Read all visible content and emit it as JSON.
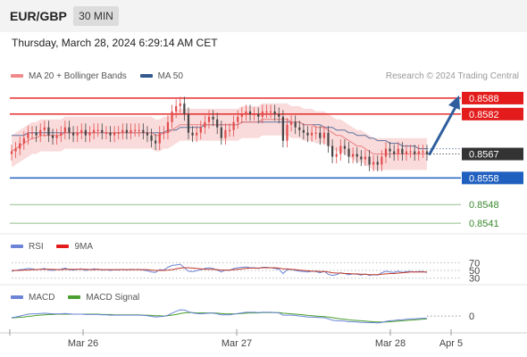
{
  "header": {
    "symbol": "EUR/GBP",
    "interval": "30 MIN",
    "datetime": "Thursday, March 28, 2024 6:29:14 AM CET"
  },
  "legend": {
    "ma20": "MA 20 + Bollinger Bands",
    "ma50": "MA 50",
    "credit": "Research © 2024 Trading Central",
    "rsi": "RSI",
    "rsi_ma": "9MA",
    "macd": "MACD",
    "macd_signal": "MACD Signal"
  },
  "colors": {
    "resistance": "#e31b1b",
    "support": "#1f5fbf",
    "target": "#3a8a2e",
    "current": "#333333",
    "candle_up": "#e34b4b",
    "candle_down": "#444444",
    "bollinger": "#f7c7c7",
    "ma20": "#e88080",
    "ma50": "#34598f",
    "rsi": "#6b84d6",
    "macd": "#6b84d6",
    "macd_signal": "#4aa02c",
    "arrow": "#2f5e9e"
  },
  "chart_data": [
    {
      "type": "candlestick",
      "title": "EUR/GBP",
      "x_ticks": [
        "Mar 26",
        "Mar 27",
        "Mar 28",
        "Apr 5"
      ],
      "ylim": [
        0.8537,
        0.8592
      ],
      "current_price": 0.8567,
      "levels": [
        {
          "value": 0.8588,
          "label": "0.8588",
          "kind": "resistance"
        },
        {
          "value": 0.8582,
          "label": "0.8582",
          "kind": "resistance"
        },
        {
          "value": 0.8567,
          "label": "0.8567",
          "kind": "current"
        },
        {
          "value": 0.8558,
          "label": "0.8558",
          "kind": "support"
        },
        {
          "value": 0.8548,
          "label": "0.8548",
          "kind": "target"
        },
        {
          "value": 0.8541,
          "label": "0.8541",
          "kind": "target"
        }
      ],
      "forecast_arrow": {
        "from": 0.8567,
        "to": 0.8588
      },
      "close": [
        0.8568,
        0.8569,
        0.8571,
        0.8573,
        0.8575,
        0.8575,
        0.8574,
        0.8576,
        0.8577,
        0.8574,
        0.8573,
        0.8574,
        0.8575,
        0.8577,
        0.8575,
        0.8574,
        0.8575,
        0.8576,
        0.8574,
        0.8575,
        0.8576,
        0.8576,
        0.8575,
        0.8575,
        0.8574,
        0.8575,
        0.8575,
        0.8576,
        0.8575,
        0.8576,
        0.8576,
        0.8576,
        0.8575,
        0.8574,
        0.8572,
        0.8571,
        0.8575,
        0.8575,
        0.8579,
        0.8583,
        0.8585,
        0.8586,
        0.8582,
        0.8575,
        0.8574,
        0.8575,
        0.8577,
        0.8579,
        0.8581,
        0.858,
        0.8577,
        0.8573,
        0.8576,
        0.8576,
        0.8579,
        0.8581,
        0.8582,
        0.8583,
        0.8582,
        0.8582,
        0.8581,
        0.8583,
        0.8583,
        0.8583,
        0.8582,
        0.8581,
        0.8572,
        0.8578,
        0.8579,
        0.8577,
        0.8576,
        0.8575,
        0.8574,
        0.8575,
        0.8575,
        0.8573,
        0.8575,
        0.857,
        0.8566,
        0.8567,
        0.857,
        0.8569,
        0.8566,
        0.8567,
        0.8566,
        0.8565,
        0.8566,
        0.8563,
        0.8564,
        0.8563,
        0.8566,
        0.8569,
        0.8568,
        0.8567,
        0.8569,
        0.8567,
        0.8568,
        0.8568,
        0.8567,
        0.8568,
        0.8568,
        0.8567
      ],
      "ma20": [
        0.8568,
        0.8569,
        0.857,
        0.8571,
        0.8572,
        0.8573,
        0.8573,
        0.8574,
        0.8574,
        0.8574,
        0.8574,
        0.8574,
        0.8574,
        0.8575,
        0.8575,
        0.8575,
        0.8575,
        0.8575,
        0.8575,
        0.8575,
        0.8575,
        0.8575,
        0.8575,
        0.8575,
        0.8575,
        0.8575,
        0.8575,
        0.8575,
        0.8575,
        0.8575,
        0.8575,
        0.8575,
        0.8575,
        0.8575,
        0.8575,
        0.8574,
        0.8574,
        0.8575,
        0.8575,
        0.8576,
        0.8577,
        0.8578,
        0.8578,
        0.8578,
        0.8578,
        0.8578,
        0.8578,
        0.8578,
        0.8578,
        0.8578,
        0.8578,
        0.8578,
        0.8578,
        0.8578,
        0.8578,
        0.8578,
        0.8579,
        0.8579,
        0.8579,
        0.8579,
        0.8579,
        0.858,
        0.858,
        0.858,
        0.858,
        0.858,
        0.858,
        0.858,
        0.8579,
        0.8579,
        0.8579,
        0.8578,
        0.8578,
        0.8578,
        0.8577,
        0.8577,
        0.8577,
        0.8576,
        0.8575,
        0.8574,
        0.8574,
        0.8573,
        0.8572,
        0.8571,
        0.857,
        0.857,
        0.8569,
        0.8568,
        0.8567,
        0.8567,
        0.8567,
        0.8567,
        0.8567,
        0.8567,
        0.8567,
        0.8567,
        0.8567,
        0.8567,
        0.8567,
        0.8567,
        0.8567,
        0.8567
      ],
      "ma50": [
        0.8574,
        0.8574,
        0.8574,
        0.8574,
        0.8575,
        0.8575,
        0.8575,
        0.8575,
        0.8575,
        0.8575,
        0.8575,
        0.8575,
        0.8575,
        0.8575,
        0.8575,
        0.8575,
        0.8575,
        0.8575,
        0.8575,
        0.8575,
        0.8575,
        0.8575,
        0.8575,
        0.8575,
        0.8575,
        0.8575,
        0.8575,
        0.8575,
        0.8575,
        0.8575,
        0.8575,
        0.8575,
        0.8575,
        0.8575,
        0.8575,
        0.8575,
        0.8575,
        0.8575,
        0.8576,
        0.8576,
        0.8576,
        0.8577,
        0.8577,
        0.8577,
        0.8577,
        0.8577,
        0.8577,
        0.8578,
        0.8578,
        0.8578,
        0.8578,
        0.8578,
        0.8578,
        0.8578,
        0.8578,
        0.8578,
        0.8579,
        0.8579,
        0.8579,
        0.8579,
        0.8579,
        0.8579,
        0.8579,
        0.8579,
        0.8579,
        0.8579,
        0.8579,
        0.8579,
        0.8579,
        0.8579,
        0.8579,
        0.8578,
        0.8578,
        0.8578,
        0.8578,
        0.8578,
        0.8577,
        0.8577,
        0.8577,
        0.8576,
        0.8576,
        0.8576,
        0.8575,
        0.8575,
        0.8574,
        0.8574,
        0.8574,
        0.8573,
        0.8573,
        0.8572,
        0.8572,
        0.8572,
        0.8571,
        0.8571,
        0.8571,
        0.857,
        0.857,
        0.857,
        0.857,
        0.8569,
        0.8569,
        0.8569
      ],
      "bollinger_width": 0.0006
    },
    {
      "type": "line",
      "title": "RSI",
      "yticks": [
        70,
        50,
        30
      ],
      "ylim": [
        20,
        80
      ],
      "series": [
        {
          "name": "RSI",
          "values": [
            48,
            50,
            52,
            53,
            55,
            54,
            52,
            53,
            55,
            51,
            50,
            52,
            53,
            56,
            52,
            51,
            53,
            54,
            50,
            52,
            54,
            53,
            51,
            52,
            50,
            52,
            51,
            53,
            51,
            53,
            52,
            53,
            51,
            49,
            46,
            45,
            52,
            51,
            58,
            63,
            64,
            66,
            57,
            48,
            47,
            49,
            52,
            55,
            57,
            55,
            51,
            46,
            51,
            50,
            55,
            57,
            58,
            59,
            57,
            57,
            55,
            58,
            58,
            57,
            55,
            53,
            42,
            52,
            53,
            50,
            48,
            47,
            46,
            48,
            47,
            44,
            48,
            40,
            37,
            39,
            44,
            42,
            39,
            41,
            40,
            38,
            41,
            37,
            39,
            38,
            44,
            48,
            46,
            45,
            48,
            45,
            47,
            47,
            46,
            47,
            47,
            45
          ]
        },
        {
          "name": "9MA",
          "values": [
            50,
            50,
            50,
            51,
            51,
            52,
            52,
            53,
            53,
            53,
            53,
            52,
            52,
            53,
            53,
            53,
            53,
            53,
            53,
            52,
            52,
            53,
            52,
            52,
            52,
            52,
            52,
            52,
            52,
            52,
            52,
            52,
            52,
            52,
            51,
            50,
            50,
            50,
            51,
            52,
            54,
            56,
            57,
            57,
            56,
            55,
            54,
            53,
            53,
            53,
            52,
            51,
            51,
            51,
            52,
            53,
            54,
            55,
            56,
            56,
            56,
            57,
            57,
            57,
            57,
            56,
            54,
            54,
            53,
            52,
            51,
            50,
            49,
            48,
            48,
            47,
            47,
            46,
            44,
            43,
            43,
            42,
            42,
            41,
            41,
            40,
            40,
            39,
            39,
            39,
            40,
            41,
            42,
            42,
            43,
            44,
            45,
            46,
            46,
            46,
            46,
            46
          ]
        }
      ]
    },
    {
      "type": "line",
      "title": "MACD",
      "yticks": [
        0
      ],
      "ylim": [
        -0.00045,
        0.0004
      ],
      "series": [
        {
          "name": "MACD",
          "values": [
            -5e-05,
            -3e-05,
            0.0,
            3e-05,
            6e-05,
            7e-05,
            7e-05,
            8e-05,
            9e-05,
            8e-05,
            7e-05,
            7e-05,
            7e-05,
            8e-05,
            7e-05,
            6e-05,
            6e-05,
            6e-05,
            5e-05,
            5e-05,
            5e-05,
            5e-05,
            4e-05,
            4e-05,
            3e-05,
            3e-05,
            3e-05,
            3e-05,
            3e-05,
            3e-05,
            3e-05,
            3e-05,
            2e-05,
            1e-05,
            -1e-05,
            -3e-05,
            -2e-05,
            -1e-05,
            3e-05,
            9e-05,
            0.00015,
            0.0002,
            0.00019,
            0.00014,
            0.0001,
            8e-05,
            7e-05,
            8e-05,
            9e-05,
            9e-05,
            7e-05,
            4e-05,
            4e-05,
            4e-05,
            6e-05,
            8e-05,
            0.0001,
            0.00012,
            0.00012,
            0.00012,
            0.00011,
            0.00012,
            0.00012,
            0.00012,
            0.00011,
            0.0001,
            3e-05,
            3e-05,
            3e-05,
            2e-05,
            0.0,
            -1e-05,
            -3e-05,
            -3e-05,
            -4e-05,
            -5e-05,
            -5e-05,
            -9e-05,
            -0.00013,
            -0.00015,
            -0.00015,
            -0.00016,
            -0.00018,
            -0.00018,
            -0.00019,
            -0.0002,
            -0.0002,
            -0.00021,
            -0.00021,
            -0.00022,
            -0.0002,
            -0.00017,
            -0.00015,
            -0.00014,
            -0.00012,
            -0.00012,
            -0.0001,
            -9e-05,
            -9e-05,
            -8e-05,
            -7e-05,
            -7e-05
          ]
        },
        {
          "name": "MACD Signal",
          "values": [
            -6e-05,
            -5e-05,
            -4e-05,
            -3e-05,
            -1e-05,
            0.0,
            2e-05,
            3e-05,
            4e-05,
            5e-05,
            5e-05,
            6e-05,
            6e-05,
            6e-05,
            6e-05,
            6e-05,
            6e-05,
            6e-05,
            6e-05,
            6e-05,
            6e-05,
            6e-05,
            5e-05,
            5e-05,
            5e-05,
            4e-05,
            4e-05,
            4e-05,
            4e-05,
            4e-05,
            4e-05,
            4e-05,
            3e-05,
            3e-05,
            2e-05,
            1e-05,
            1e-05,
            0.0,
            1e-05,
            3e-05,
            5e-05,
            8e-05,
            0.0001,
            0.00011,
            0.00011,
            0.0001,
            0.0001,
            0.0001,
            0.0001,
            0.0001,
            9e-05,
            8e-05,
            7e-05,
            7e-05,
            7e-05,
            7e-05,
            8e-05,
            9e-05,
            0.0001,
            0.0001,
            0.0001,
            0.00011,
            0.00011,
            0.00011,
            0.00011,
            0.00011,
            9e-05,
            8e-05,
            7e-05,
            6e-05,
            5e-05,
            4e-05,
            2e-05,
            1e-05,
            0.0,
            -1e-05,
            -2e-05,
            -3e-05,
            -5e-05,
            -7e-05,
            -9e-05,
            -0.0001,
            -0.00012,
            -0.00013,
            -0.00014,
            -0.00015,
            -0.00016,
            -0.00017,
            -0.00018,
            -0.00019,
            -0.00019,
            -0.00019,
            -0.00018,
            -0.00017,
            -0.00016,
            -0.00015,
            -0.00014,
            -0.00013,
            -0.00012,
            -0.00011,
            -0.0001,
            -9e-05
          ]
        }
      ]
    }
  ]
}
